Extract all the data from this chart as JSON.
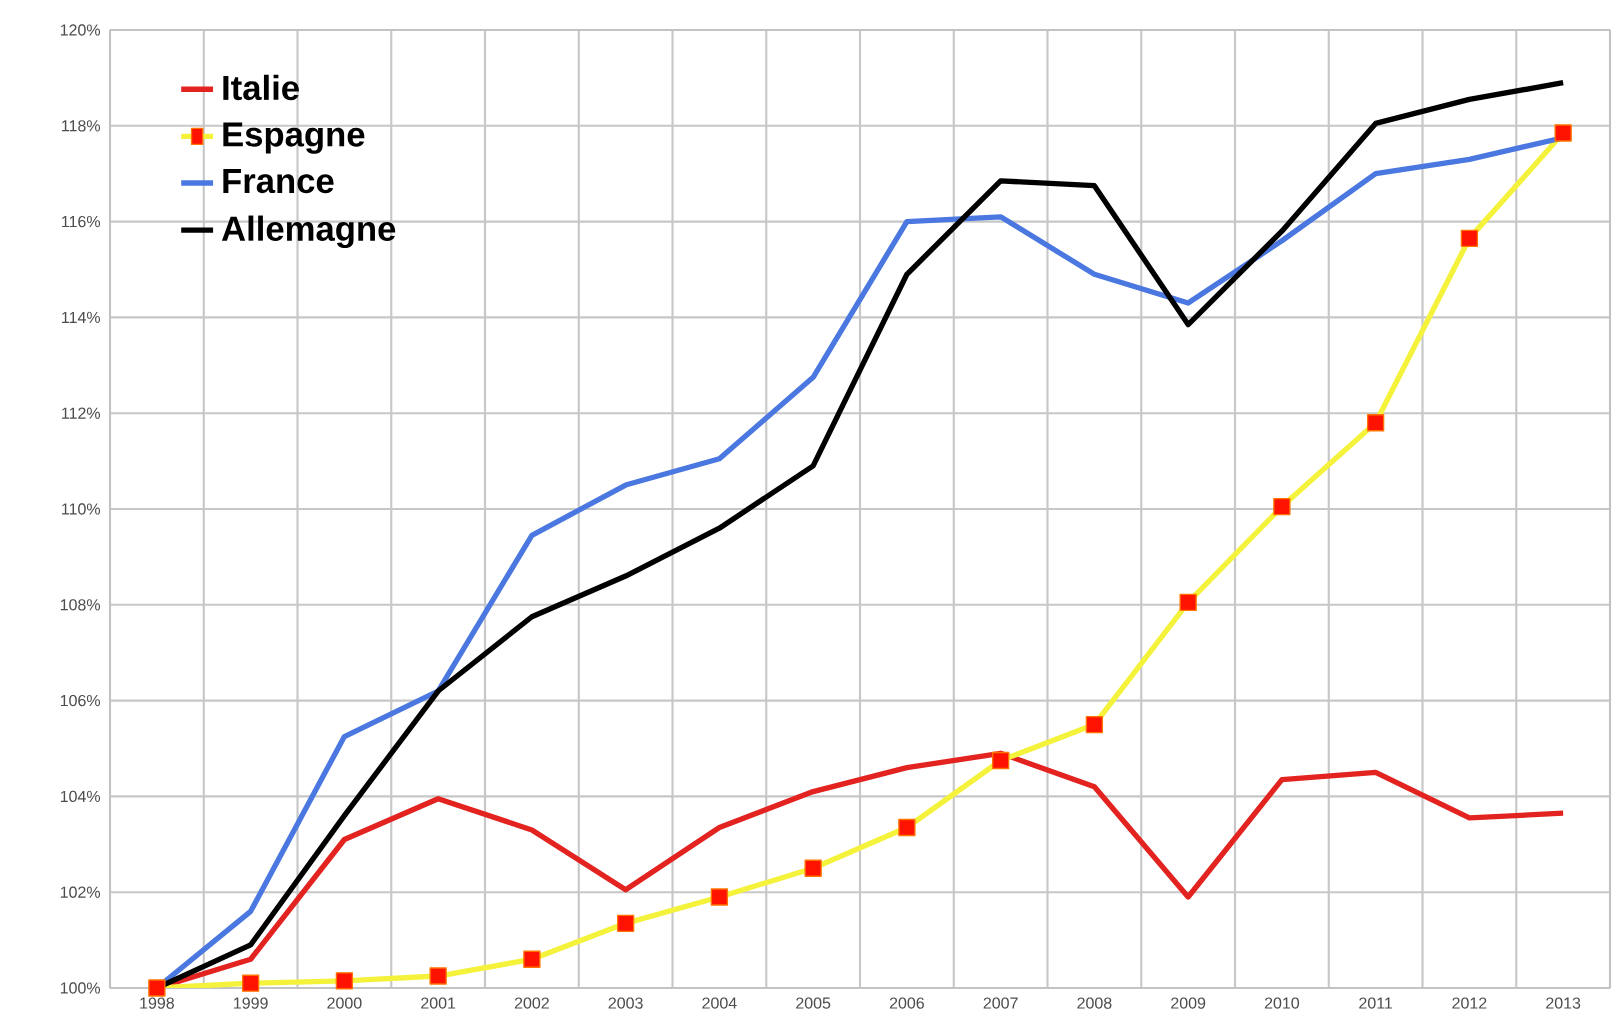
{
  "chart_data": {
    "type": "line",
    "categories": [
      "1998",
      "1999",
      "2000",
      "2001",
      "2002",
      "2003",
      "2004",
      "2005",
      "2006",
      "2007",
      "2008",
      "2009",
      "2010",
      "2011",
      "2012",
      "2013"
    ],
    "series": [
      {
        "name": "Italie",
        "color": "#e3231f",
        "marker": "none",
        "values": [
          100,
          100.6,
          103.1,
          103.95,
          103.3,
          102.05,
          103.35,
          104.1,
          104.6,
          104.9,
          104.2,
          101.9,
          104.35,
          104.5,
          103.55,
          103.65
        ]
      },
      {
        "name": "Espagne",
        "color": "#f4f23a",
        "marker": "square",
        "values": [
          100,
          100.1,
          100.15,
          100.25,
          100.6,
          101.35,
          101.9,
          102.5,
          103.35,
          104.75,
          105.5,
          108.05,
          110.05,
          111.8,
          115.65,
          117.85
        ]
      },
      {
        "name": "France",
        "color": "#4a78e0",
        "marker": "none",
        "values": [
          100,
          101.6,
          105.25,
          106.2,
          109.45,
          110.5,
          111.05,
          112.75,
          116.0,
          116.1,
          114.9,
          114.3,
          115.6,
          117.0,
          117.3,
          117.75
        ]
      },
      {
        "name": "Allemagne",
        "color": "#000000",
        "marker": "none",
        "values": [
          100,
          100.9,
          103.6,
          106.2,
          107.75,
          108.6,
          109.6,
          110.9,
          114.9,
          116.85,
          116.75,
          113.85,
          115.8,
          118.05,
          118.55,
          118.9
        ]
      }
    ],
    "ylim": [
      100,
      120
    ],
    "yticks": [
      {
        "value": 100,
        "label": "100%"
      },
      {
        "value": 102,
        "label": "102%"
      },
      {
        "value": 104,
        "label": "104%"
      },
      {
        "value": 106,
        "label": "106%"
      },
      {
        "value": 108,
        "label": "108%"
      },
      {
        "value": 110,
        "label": "110%"
      },
      {
        "value": 112,
        "label": "112%"
      },
      {
        "value": 114,
        "label": "114%"
      },
      {
        "value": 116,
        "label": "116%"
      },
      {
        "value": 118,
        "label": "118%"
      },
      {
        "value": 120,
        "label": "120%"
      }
    ],
    "grid": true,
    "legend": "top left"
  }
}
